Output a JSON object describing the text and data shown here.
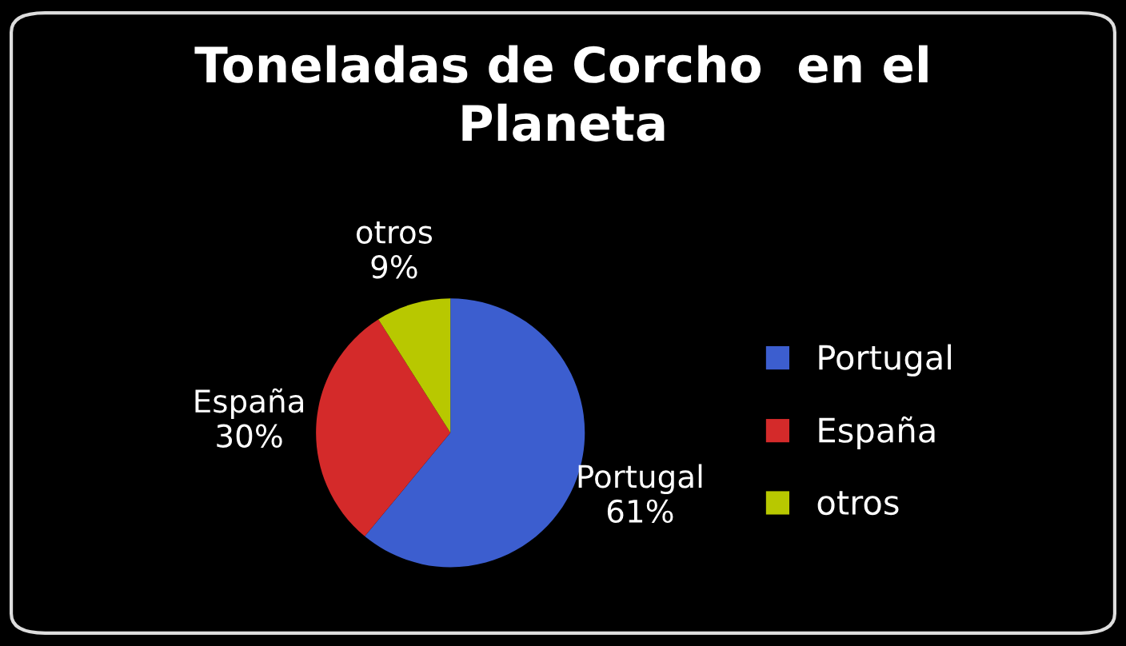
{
  "chart_data": {
    "type": "pie",
    "title": "Toneladas de Corcho  en el\nPlaneta",
    "categories": [
      "Portugal",
      "España",
      "otros"
    ],
    "values": [
      61,
      30,
      9
    ],
    "value_labels": [
      "61%",
      "30%",
      "9%"
    ],
    "colors": [
      "#3c5ecf",
      "#d42a2a",
      "#b8c800"
    ],
    "legend": "right"
  }
}
